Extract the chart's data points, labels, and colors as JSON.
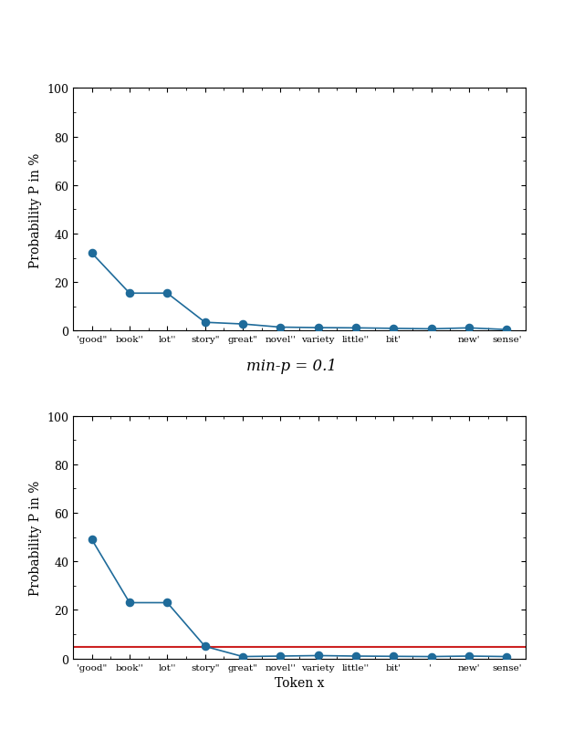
{
  "tokens": [
    "'good\"",
    "book''",
    "lot''",
    "story\"",
    "great\"",
    "novel''",
    "variety",
    "little''",
    "bit'",
    "' ",
    "new'",
    "sense'"
  ],
  "values_top": [
    32.0,
    15.5,
    15.5,
    3.5,
    2.8,
    1.5,
    1.3,
    1.2,
    1.0,
    0.8,
    1.2,
    0.5
  ],
  "values_bottom": [
    49.0,
    23.0,
    23.0,
    5.0,
    0.8,
    1.0,
    1.2,
    1.0,
    0.9,
    0.8,
    1.0,
    0.8
  ],
  "min_p": 0.1,
  "title_middle": "min-p = 0.1",
  "ylabel": "Probability P in %",
  "xlabel": "Token x",
  "ylim": [
    0,
    100
  ],
  "line_color": "#1f6b9a",
  "marker_color": "#1f6b9a",
  "threshold_color": "#cc2222",
  "bg_color": "#ffffff",
  "yticks": [
    0,
    20,
    40,
    60,
    80,
    100
  ]
}
